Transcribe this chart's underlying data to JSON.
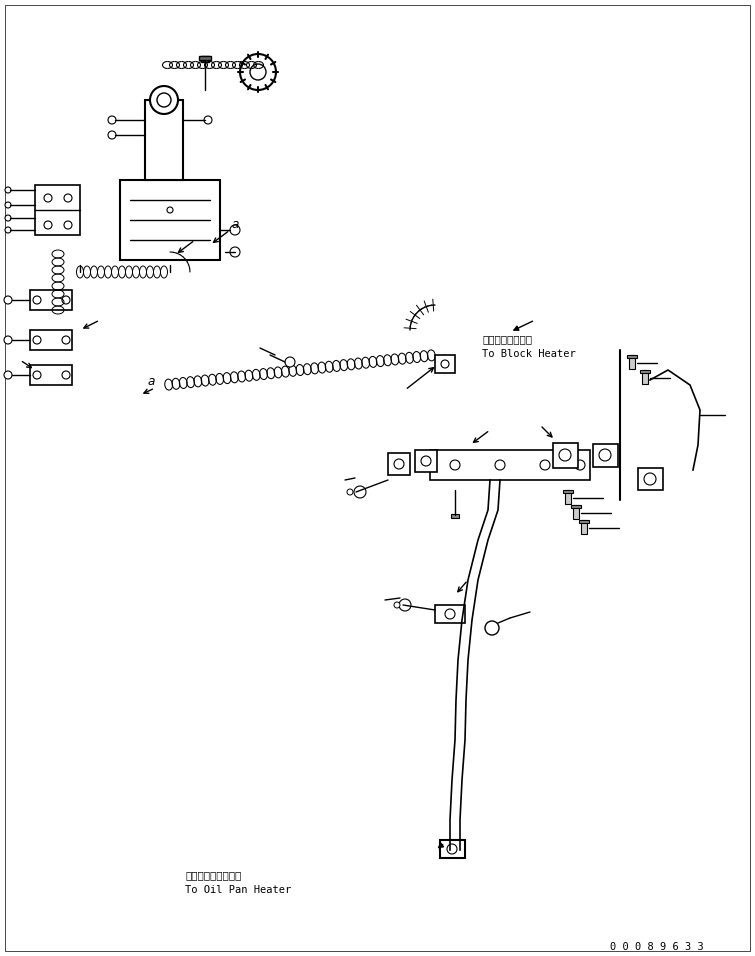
{
  "title": "",
  "background_color": "#ffffff",
  "line_color": "#000000",
  "fig_width": 7.55,
  "fig_height": 9.56,
  "dpi": 100,
  "annotation_block_heater_jp": "ブロックヒータヘ",
  "annotation_block_heater_en": "To Block Heater",
  "annotation_oil_pan_jp": "オイルパンヒータヘ",
  "annotation_oil_pan_en": "To Oil Pan Heater",
  "part_number": "0 0 0 8 9 6 3 3",
  "label_a": "a"
}
